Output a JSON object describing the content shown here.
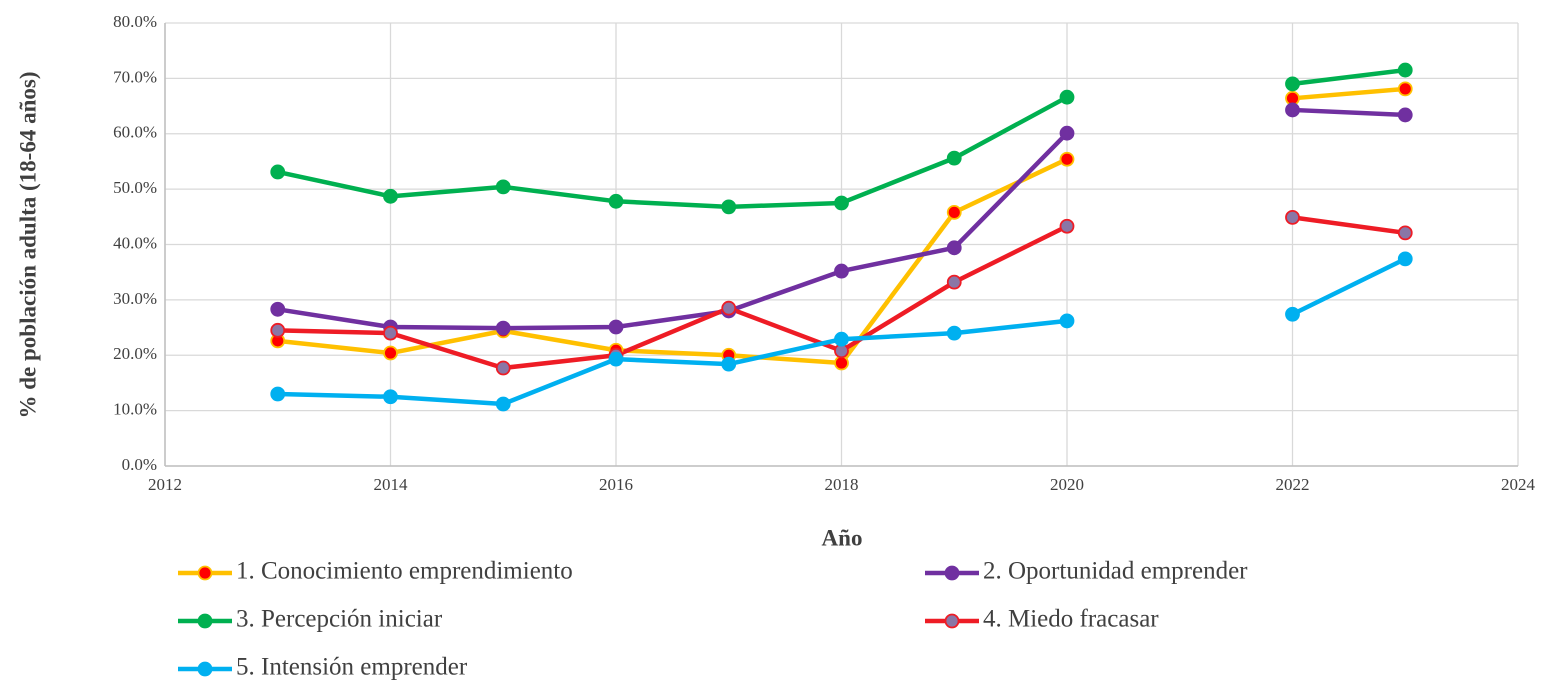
{
  "chart_data": {
    "type": "line",
    "x_label": "Año",
    "y_label": "% de población adulta (18-64 años)",
    "x": [
      2013,
      2014,
      2015,
      2016,
      2017,
      2018,
      2019,
      2020,
      2021,
      2022,
      2023
    ],
    "series": [
      {
        "name": "1. Conocimiento emprendimiento",
        "color": "#ffc000",
        "marker_color": "#ff0000",
        "values": [
          22.6,
          20.4,
          24.4,
          20.9,
          20.0,
          18.6,
          45.8,
          55.4,
          null,
          66.4,
          68.1
        ]
      },
      {
        "name": "2. Oportunidad emprender",
        "color": "#7030a0",
        "marker_color": "#7030a0",
        "values": [
          28.3,
          25.1,
          24.9,
          25.1,
          28.0,
          35.2,
          39.4,
          60.1,
          null,
          64.3,
          63.4
        ]
      },
      {
        "name": "3. Percepción iniciar",
        "color": "#00b050",
        "marker_color": "#00b050",
        "values": [
          53.1,
          48.7,
          50.4,
          47.8,
          46.8,
          47.5,
          55.6,
          66.6,
          null,
          69.0,
          71.5
        ]
      },
      {
        "name": "4. Miedo fracasar",
        "color": "#ee1c25",
        "marker_color": "#8a76a6",
        "values": [
          24.5,
          24.0,
          17.7,
          20.0,
          28.5,
          20.8,
          33.2,
          43.3,
          null,
          44.9,
          42.1
        ]
      },
      {
        "name": "5. Intensión emprender",
        "color": "#00b0f0",
        "marker_color": "#00b0f0",
        "values": [
          13.0,
          12.5,
          11.2,
          19.3,
          18.4,
          22.9,
          24.0,
          26.2,
          null,
          27.4,
          37.4
        ]
      }
    ],
    "xlim": [
      2012,
      2024
    ],
    "xticks": [
      2012,
      2014,
      2016,
      2018,
      2020,
      2022,
      2024
    ],
    "ylim": [
      0,
      80
    ],
    "yticks": [
      {
        "value": 0,
        "label": "0.0%"
      },
      {
        "value": 10,
        "label": "10.0%"
      },
      {
        "value": 20,
        "label": "20.0%"
      },
      {
        "value": 30,
        "label": "30.0%"
      },
      {
        "value": 40,
        "label": "40.0%"
      },
      {
        "value": 50,
        "label": "50.0%"
      },
      {
        "value": 60,
        "label": "60.0%"
      },
      {
        "value": 70,
        "label": "70.0%"
      },
      {
        "value": 80,
        "label": "80.0%"
      }
    ],
    "grid": true,
    "legend": "bottom"
  }
}
